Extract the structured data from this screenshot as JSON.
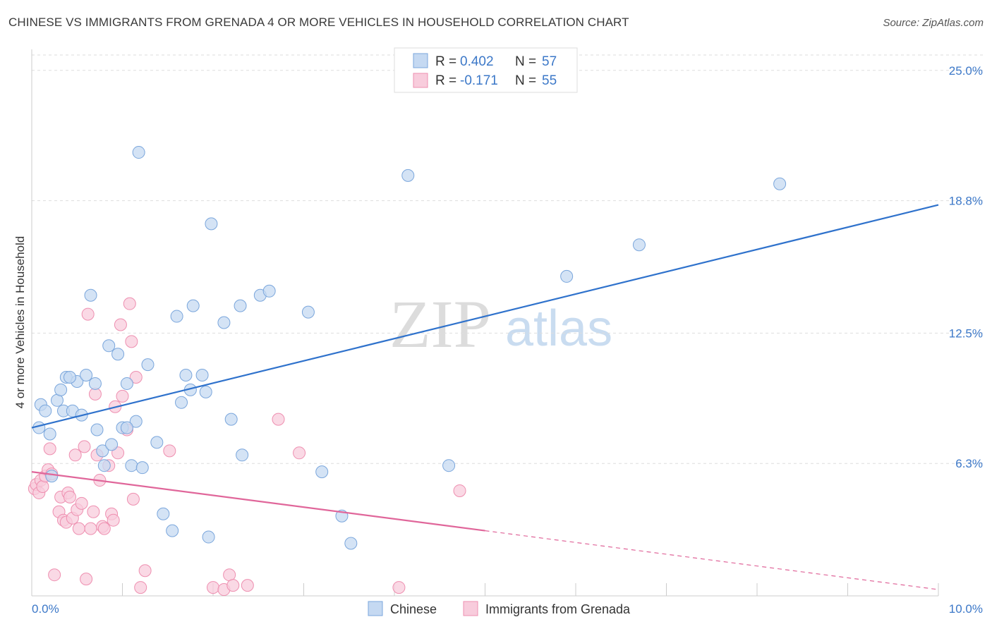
{
  "title": "CHINESE VS IMMIGRANTS FROM GRENADA 4 OR MORE VEHICLES IN HOUSEHOLD CORRELATION CHART",
  "source": "Source: ZipAtlas.com",
  "watermark": {
    "zip": "ZIP",
    "atlas": "atlas"
  },
  "legend": {
    "r_label": "R =",
    "n_label": "N =",
    "series": [
      {
        "name": "Chinese",
        "r": "0.402",
        "n": "57"
      },
      {
        "name": "Immigrants from Grenada",
        "r": "-0.171",
        "n": "55"
      }
    ]
  },
  "chart_data": {
    "type": "scatter",
    "title": "CHINESE VS IMMIGRANTS FROM GRENADA 4 OR MORE VEHICLES IN HOUSEHOLD CORRELATION CHART",
    "xlabel": "",
    "ylabel": "4 or more Vehicles in Household",
    "xlim": [
      0,
      10
    ],
    "ylim": [
      0,
      26
    ],
    "x_tick_labels": [
      "0.0%",
      "10.0%"
    ],
    "y_ticks": [
      6.3,
      12.5,
      18.8,
      25.0
    ],
    "y_tick_labels": [
      "6.3%",
      "12.5%",
      "18.8%",
      "25.0%"
    ],
    "grid": true,
    "colors": {
      "chinese": "#7aa6dc",
      "chinese_fill": "#c5d9f2",
      "grenada": "#ee8fb0",
      "grenada_fill": "#f8ccdc",
      "chinese_line": "#2f72cc",
      "grenada_line": "#e0669a"
    },
    "series": [
      {
        "name": "Chinese",
        "r": 0.402,
        "n": 57,
        "trend": {
          "x": [
            0.0,
            10.0
          ],
          "y": [
            8.0,
            18.6
          ]
        },
        "points": [
          [
            0.08,
            8.0
          ],
          [
            0.1,
            9.1
          ],
          [
            0.15,
            8.8
          ],
          [
            0.2,
            7.7
          ],
          [
            0.22,
            5.7
          ],
          [
            0.28,
            9.3
          ],
          [
            0.32,
            9.8
          ],
          [
            0.35,
            8.8
          ],
          [
            0.38,
            10.4
          ],
          [
            0.45,
            8.8
          ],
          [
            0.5,
            10.2
          ],
          [
            0.55,
            8.6
          ],
          [
            0.6,
            10.5
          ],
          [
            0.65,
            14.3
          ],
          [
            0.7,
            10.1
          ],
          [
            0.72,
            7.9
          ],
          [
            0.78,
            6.9
          ],
          [
            0.8,
            6.2
          ],
          [
            0.85,
            11.9
          ],
          [
            0.88,
            7.2
          ],
          [
            0.95,
            11.5
          ],
          [
            1.0,
            8.0
          ],
          [
            1.05,
            10.1
          ],
          [
            1.1,
            6.2
          ],
          [
            1.15,
            8.3
          ],
          [
            1.18,
            21.1
          ],
          [
            1.22,
            6.1
          ],
          [
            1.28,
            11.0
          ],
          [
            1.38,
            7.3
          ],
          [
            1.45,
            3.9
          ],
          [
            1.55,
            3.1
          ],
          [
            1.6,
            13.3
          ],
          [
            1.65,
            9.2
          ],
          [
            1.7,
            10.5
          ],
          [
            1.75,
            9.8
          ],
          [
            1.78,
            13.8
          ],
          [
            1.88,
            10.5
          ],
          [
            1.92,
            9.7
          ],
          [
            1.95,
            2.8
          ],
          [
            1.98,
            17.7
          ],
          [
            2.12,
            13.0
          ],
          [
            2.2,
            8.4
          ],
          [
            2.3,
            13.8
          ],
          [
            2.32,
            6.7
          ],
          [
            2.52,
            14.3
          ],
          [
            2.62,
            14.5
          ],
          [
            3.05,
            13.5
          ],
          [
            3.2,
            5.9
          ],
          [
            3.42,
            3.8
          ],
          [
            3.52,
            2.5
          ],
          [
            4.15,
            20.0
          ],
          [
            4.6,
            6.2
          ],
          [
            5.9,
            15.2
          ],
          [
            6.7,
            16.7
          ],
          [
            8.25,
            19.6
          ],
          [
            0.42,
            10.4
          ],
          [
            1.05,
            8.0
          ]
        ]
      },
      {
        "name": "Immigrants from Grenada",
        "r": -0.171,
        "n": 55,
        "trend_solid": {
          "x": [
            0.0,
            5.0
          ],
          "y": [
            5.9,
            3.1
          ]
        },
        "trend_dashed": {
          "x": [
            5.0,
            10.0
          ],
          "y": [
            3.1,
            0.3
          ]
        },
        "points": [
          [
            0.03,
            5.1
          ],
          [
            0.05,
            5.3
          ],
          [
            0.08,
            4.9
          ],
          [
            0.1,
            5.5
          ],
          [
            0.12,
            5.2
          ],
          [
            0.15,
            5.7
          ],
          [
            0.18,
            6.0
          ],
          [
            0.2,
            7.0
          ],
          [
            0.22,
            5.8
          ],
          [
            0.25,
            1.0
          ],
          [
            0.3,
            4.0
          ],
          [
            0.32,
            4.7
          ],
          [
            0.35,
            3.6
          ],
          [
            0.38,
            3.5
          ],
          [
            0.4,
            4.9
          ],
          [
            0.42,
            4.7
          ],
          [
            0.45,
            3.7
          ],
          [
            0.48,
            6.7
          ],
          [
            0.5,
            4.1
          ],
          [
            0.52,
            3.2
          ],
          [
            0.55,
            4.4
          ],
          [
            0.58,
            7.1
          ],
          [
            0.6,
            0.8
          ],
          [
            0.62,
            13.4
          ],
          [
            0.65,
            3.2
          ],
          [
            0.68,
            4.0
          ],
          [
            0.7,
            9.6
          ],
          [
            0.72,
            6.7
          ],
          [
            0.75,
            5.5
          ],
          [
            0.78,
            3.3
          ],
          [
            0.8,
            3.2
          ],
          [
            0.85,
            6.2
          ],
          [
            0.88,
            3.9
          ],
          [
            0.9,
            3.6
          ],
          [
            0.92,
            9.0
          ],
          [
            0.95,
            6.8
          ],
          [
            0.98,
            12.9
          ],
          [
            1.0,
            9.5
          ],
          [
            1.05,
            7.9
          ],
          [
            1.08,
            13.9
          ],
          [
            1.1,
            12.1
          ],
          [
            1.12,
            4.6
          ],
          [
            1.15,
            10.4
          ],
          [
            1.2,
            0.4
          ],
          [
            1.25,
            1.2
          ],
          [
            1.52,
            6.9
          ],
          [
            2.0,
            0.4
          ],
          [
            2.12,
            0.3
          ],
          [
            2.18,
            1.0
          ],
          [
            2.22,
            0.5
          ],
          [
            2.38,
            0.5
          ],
          [
            2.72,
            8.4
          ],
          [
            2.95,
            6.8
          ],
          [
            4.05,
            0.4
          ],
          [
            4.72,
            5.0
          ]
        ]
      }
    ]
  }
}
